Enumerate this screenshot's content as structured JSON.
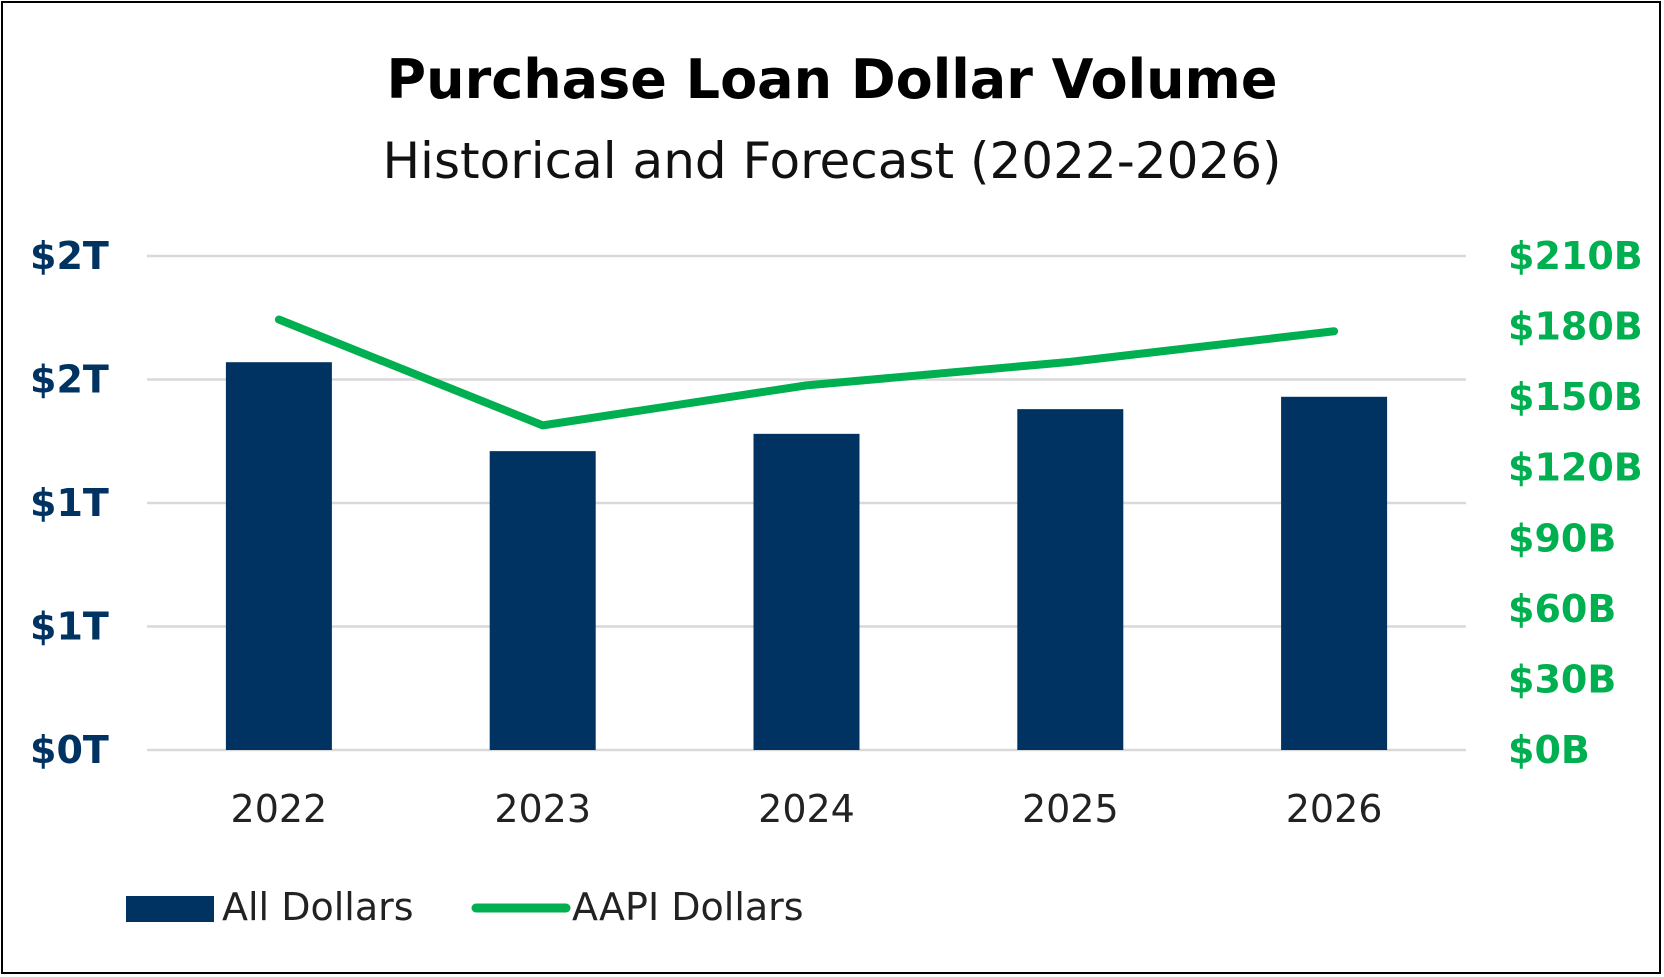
{
  "chart_data": {
    "type": "bar",
    "title": "Purchase Loan Dollar Volume",
    "subtitle": "Historical and Forecast (2022-2026)",
    "categories": [
      "2022",
      "2023",
      "2024",
      "2025",
      "2026"
    ],
    "series": [
      {
        "name": "All Dollars",
        "type": "bar",
        "axis": "left",
        "color": "#003361",
        "values": [
          1.57,
          1.21,
          1.28,
          1.38,
          1.43
        ]
      },
      {
        "name": "AAPI Dollars",
        "type": "line",
        "axis": "right",
        "color": "#00B050",
        "values": [
          183,
          138,
          155,
          165,
          178
        ]
      }
    ],
    "y_left": {
      "ticks": [
        "$0T",
        "$1T",
        "$1T",
        "$2T",
        "$2T"
      ],
      "tick_values": [
        0,
        0.5,
        1.0,
        1.5,
        2.0
      ],
      "range": [
        0,
        2.0
      ],
      "color": "#003361"
    },
    "y_right": {
      "ticks": [
        "$0B",
        "$30B",
        "$60B",
        "$90B",
        "$120B",
        "$150B",
        "$180B",
        "$210B"
      ],
      "tick_values": [
        0,
        30,
        60,
        90,
        120,
        150,
        180,
        210
      ],
      "range": [
        0,
        210
      ],
      "color": "#00B050"
    },
    "grid": true,
    "legend_position": "bottom-left"
  }
}
